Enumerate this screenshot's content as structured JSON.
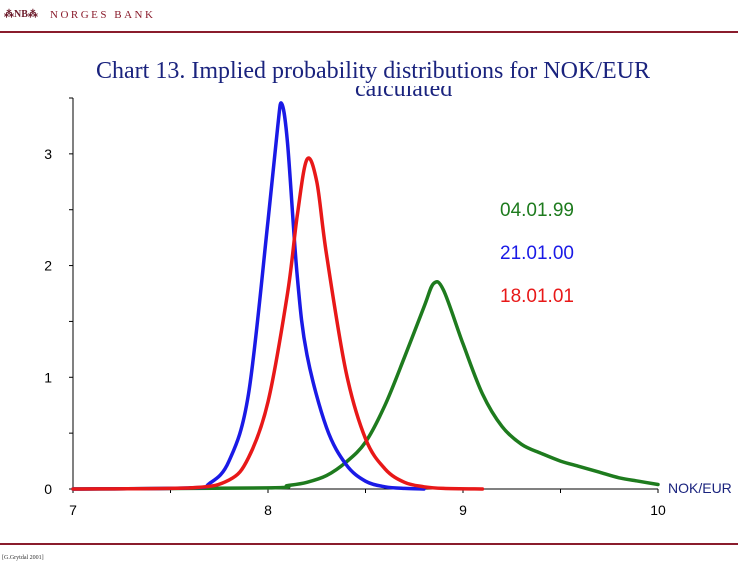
{
  "header": {
    "logo_text": "NB",
    "bank_name": "NORGES BANK"
  },
  "footer": {
    "note": "[G.Grytdal 2001]"
  },
  "colors": {
    "brand": "#8a1c2c",
    "title": "#1a237e"
  },
  "chart_data": {
    "type": "line",
    "title": "Chart 13. Implied probability distributions for NOK/EUR",
    "subtitle_fragment": "calculated",
    "xlabel": "NOK/EUR",
    "ylabel": "",
    "xlim": [
      7,
      10
    ],
    "ylim": [
      0,
      3.5
    ],
    "x_ticks": [
      "7",
      "8",
      "9",
      "10"
    ],
    "y_ticks": [
      "0",
      "1",
      "2",
      "3"
    ],
    "grid": false,
    "legend_position": "right",
    "series": [
      {
        "name": "04.01.99",
        "color": "#1e7b1e",
        "x": [
          7.0,
          8.0,
          8.1,
          8.2,
          8.3,
          8.4,
          8.5,
          8.6,
          8.7,
          8.8,
          8.85,
          8.9,
          9.0,
          9.1,
          9.2,
          9.3,
          9.4,
          9.5,
          9.6,
          9.7,
          9.8,
          9.9,
          10.0
        ],
        "y": [
          0,
          0.01,
          0.03,
          0.06,
          0.12,
          0.24,
          0.42,
          0.75,
          1.18,
          1.63,
          1.84,
          1.78,
          1.3,
          0.85,
          0.56,
          0.4,
          0.32,
          0.25,
          0.2,
          0.15,
          0.1,
          0.07,
          0.04
        ]
      },
      {
        "name": "21.01.00",
        "color": "#1a1ae6",
        "x": [
          7.0,
          7.6,
          7.7,
          7.8,
          7.9,
          8.0,
          8.05,
          8.07,
          8.1,
          8.15,
          8.2,
          8.3,
          8.4,
          8.5,
          8.6,
          8.7,
          8.8
        ],
        "y": [
          0,
          0.01,
          0.05,
          0.25,
          0.85,
          2.4,
          3.25,
          3.45,
          3.1,
          1.9,
          1.2,
          0.55,
          0.22,
          0.07,
          0.02,
          0.005,
          0
        ]
      },
      {
        "name": "18.01.01",
        "color": "#e81818",
        "x": [
          7.0,
          7.6,
          7.8,
          7.9,
          8.0,
          8.1,
          8.15,
          8.2,
          8.25,
          8.3,
          8.4,
          8.5,
          8.6,
          8.7,
          8.8,
          8.9,
          9.1
        ],
        "y": [
          0,
          0.01,
          0.08,
          0.28,
          0.78,
          1.75,
          2.45,
          2.95,
          2.75,
          2.1,
          1.05,
          0.45,
          0.18,
          0.06,
          0.02,
          0.005,
          0
        ]
      }
    ]
  }
}
